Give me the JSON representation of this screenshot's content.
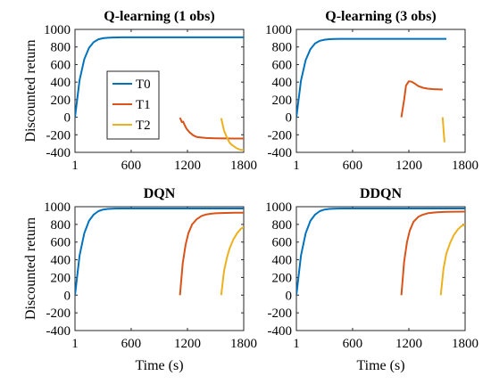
{
  "chart_data": [
    {
      "type": "line",
      "title": "Q-learning (1 obs)",
      "xlabel": "",
      "ylabel": "Discounted return",
      "xlim": [
        1,
        1800
      ],
      "ylim": [
        -400,
        1000
      ],
      "xticks": [
        "1",
        "600",
        "1200",
        "1800"
      ],
      "yticks": [
        "1000",
        "800",
        "600",
        "400",
        "200",
        "0",
        "-200",
        "-400"
      ],
      "legend": {
        "placement": "inside-left",
        "entries": [
          "T0",
          "T1",
          "T2"
        ]
      },
      "series": [
        {
          "name": "T0",
          "color": "#0072BD",
          "x": [
            1,
            50,
            100,
            150,
            200,
            250,
            300,
            350,
            400,
            500,
            600,
            800,
            1000,
            1200,
            1400,
            1600,
            1800
          ],
          "y": [
            0,
            420,
            660,
            790,
            855,
            887,
            900,
            905,
            908,
            910,
            910,
            910,
            910,
            910,
            910,
            910,
            910
          ]
        },
        {
          "name": "T1",
          "color": "#D95319",
          "x": [
            1120,
            1140,
            1155,
            1170,
            1190,
            1220,
            1260,
            1300,
            1350,
            1400,
            1500,
            1600,
            1700,
            1800
          ],
          "y": [
            -5,
            -55,
            -50,
            -90,
            -130,
            -170,
            -205,
            -225,
            -232,
            -237,
            -240,
            -242,
            -243,
            -243
          ]
        },
        {
          "name": "T2",
          "color": "#EDB120",
          "x": [
            1560,
            1590,
            1620,
            1650,
            1680,
            1720,
            1760,
            1800
          ],
          "y": [
            -10,
            -150,
            -230,
            -290,
            -320,
            -350,
            -370,
            -375
          ]
        }
      ]
    },
    {
      "type": "line",
      "title": "Q-learning (3 obs)",
      "xlabel": "",
      "ylabel": "",
      "xlim": [
        1,
        1800
      ],
      "ylim": [
        -400,
        1000
      ],
      "xticks": [
        "1",
        "600",
        "1200",
        "1800"
      ],
      "yticks": [
        "1000",
        "800",
        "600",
        "400",
        "200",
        "0",
        "-200",
        "-400"
      ],
      "series": [
        {
          "name": "T0",
          "color": "#0072BD",
          "x": [
            1,
            50,
            100,
            150,
            200,
            250,
            300,
            350,
            400,
            500,
            600,
            800,
            1000,
            1200,
            1400,
            1600
          ],
          "y": [
            0,
            415,
            650,
            775,
            840,
            870,
            882,
            888,
            890,
            892,
            892,
            892,
            892,
            892,
            892,
            892
          ]
        },
        {
          "name": "T1",
          "color": "#D95319",
          "x": [
            1120,
            1150,
            1170,
            1200,
            1230,
            1260,
            1300,
            1350,
            1400,
            1450,
            1500,
            1560
          ],
          "y": [
            0,
            200,
            360,
            410,
            405,
            385,
            355,
            335,
            325,
            320,
            318,
            315
          ]
        },
        {
          "name": "T2",
          "color": "#EDB120",
          "x": [
            1560,
            1580
          ],
          "y": [
            0,
            -285
          ]
        }
      ]
    },
    {
      "type": "line",
      "title": "DQN",
      "xlabel": "Time (s)",
      "ylabel": "Discounted return",
      "xlim": [
        1,
        1800
      ],
      "ylim": [
        -400,
        1000
      ],
      "xticks": [
        "1",
        "600",
        "1200",
        "1800"
      ],
      "yticks": [
        "1000",
        "800",
        "600",
        "400",
        "200",
        "0",
        "-200",
        "-400"
      ],
      "series": [
        {
          "name": "T0",
          "color": "#0072BD",
          "x": [
            1,
            50,
            100,
            150,
            200,
            250,
            300,
            350,
            400,
            500,
            600,
            800,
            1000,
            1200,
            1400,
            1600,
            1800
          ],
          "y": [
            0,
            445,
            700,
            840,
            910,
            950,
            968,
            975,
            978,
            980,
            980,
            980,
            980,
            980,
            980,
            980,
            980
          ]
        },
        {
          "name": "T1",
          "color": "#D95319",
          "x": [
            1120,
            1150,
            1180,
            1210,
            1250,
            1300,
            1350,
            1400,
            1450,
            1500,
            1600,
            1700,
            1800
          ],
          "y": [
            0,
            360,
            570,
            700,
            800,
            860,
            895,
            912,
            920,
            925,
            930,
            932,
            933
          ]
        },
        {
          "name": "T2",
          "color": "#EDB120",
          "x": [
            1560,
            1590,
            1620,
            1650,
            1690,
            1730,
            1770,
            1800
          ],
          "y": [
            0,
            270,
            420,
            530,
            630,
            700,
            750,
            770
          ]
        }
      ]
    },
    {
      "type": "line",
      "title": "DDQN",
      "xlabel": "Time (s)",
      "ylabel": "",
      "xlim": [
        1,
        1800
      ],
      "ylim": [
        -400,
        1000
      ],
      "xticks": [
        "1",
        "600",
        "1200",
        "1800"
      ],
      "yticks": [
        "1000",
        "800",
        "600",
        "400",
        "200",
        "0",
        "-200",
        "-400"
      ],
      "series": [
        {
          "name": "T0",
          "color": "#0072BD",
          "x": [
            1,
            50,
            100,
            150,
            200,
            250,
            300,
            350,
            400,
            500,
            600,
            800,
            1000,
            1200,
            1400,
            1600,
            1800
          ],
          "y": [
            0,
            445,
            700,
            840,
            910,
            950,
            968,
            975,
            978,
            980,
            980,
            980,
            980,
            980,
            980,
            980,
            980
          ]
        },
        {
          "name": "T1",
          "color": "#D95319",
          "x": [
            1120,
            1150,
            1180,
            1210,
            1250,
            1300,
            1350,
            1400,
            1450,
            1500,
            1600,
            1700,
            1800
          ],
          "y": [
            0,
            380,
            600,
            730,
            830,
            885,
            910,
            925,
            933,
            938,
            942,
            944,
            945
          ]
        },
        {
          "name": "T2",
          "color": "#EDB120",
          "x": [
            1540,
            1570,
            1600,
            1640,
            1680,
            1720,
            1760,
            1800
          ],
          "y": [
            0,
            300,
            470,
            590,
            680,
            740,
            780,
            800
          ]
        }
      ]
    }
  ]
}
